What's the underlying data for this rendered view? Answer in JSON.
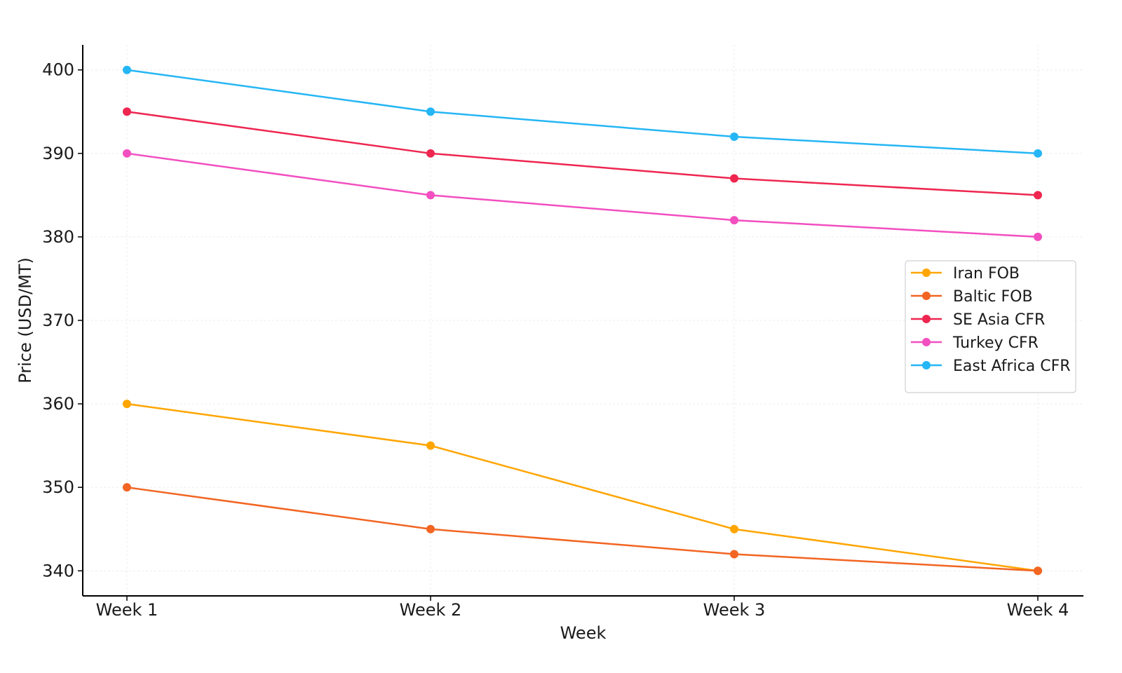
{
  "chart_data": {
    "type": "line",
    "categories": [
      "Week 1",
      "Week 2",
      "Week 3",
      "Week 4"
    ],
    "xlabel": "Week",
    "ylabel": "Price (USD/MT)",
    "ylim": [
      337,
      403
    ],
    "yticks": [
      340,
      350,
      360,
      370,
      380,
      390,
      400
    ],
    "grid": true,
    "legend_position": "center-right",
    "series": [
      {
        "name": "Iran FOB",
        "color": "#FFA500",
        "values": [
          360,
          355,
          345,
          340
        ]
      },
      {
        "name": "Baltic FOB",
        "color": "#F26522",
        "values": [
          350,
          345,
          342,
          340
        ]
      },
      {
        "name": "SE Asia CFR",
        "color": "#EE2650",
        "values": [
          395,
          390,
          387,
          385
        ]
      },
      {
        "name": "Turkey CFR",
        "color": "#F24FC0",
        "values": [
          390,
          385,
          382,
          380
        ]
      },
      {
        "name": "East Africa CFR",
        "color": "#25B6F5",
        "values": [
          400,
          395,
          392,
          390
        ]
      }
    ]
  }
}
